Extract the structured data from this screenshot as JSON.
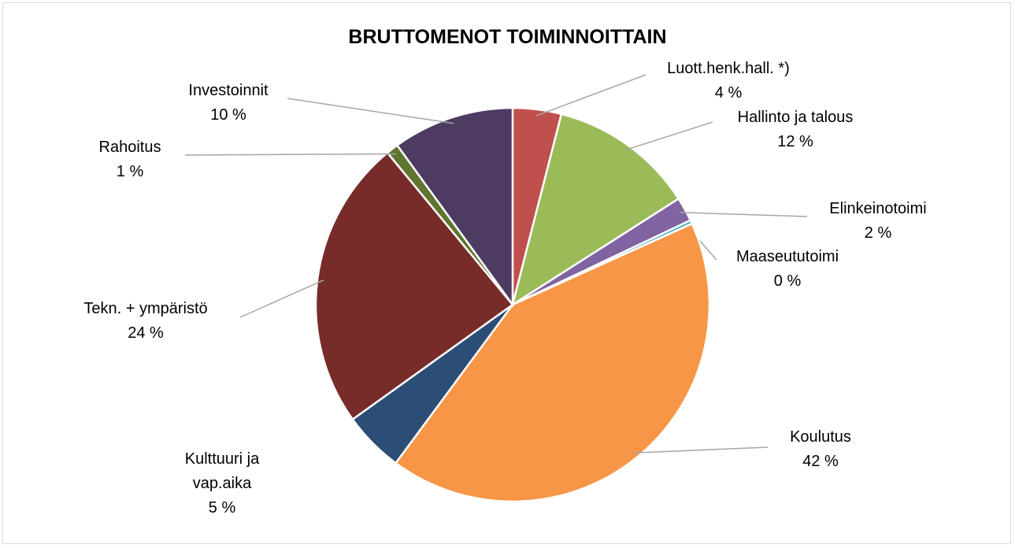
{
  "chart_data": {
    "type": "pie",
    "title": "BRUTTOMENOT TOIMINNOITTAIN",
    "categories": [
      "Luott.henk.hall. *)",
      "Hallinto ja talous",
      "Elinkeinotoimi",
      "Maaseututoimi",
      "Koulutus",
      "Kulttuuri ja vap.aika",
      "Tekn. + ympäristö",
      "Rahoitus",
      "Investoinnit"
    ],
    "values": [
      4,
      12,
      2,
      0.3,
      42,
      5,
      24,
      1,
      10
    ],
    "value_labels": [
      "4 %",
      "12 %",
      "2 %",
      "0 %",
      "42 %",
      "5 %",
      "24 %",
      "1 %",
      "10 %"
    ],
    "colors": [
      "#c0504d",
      "#9bbb59",
      "#8064a2",
      "#4bacc6",
      "#f79646",
      "#2c4d75",
      "#772c2a",
      "#5f7530",
      "#4d3b62"
    ]
  }
}
